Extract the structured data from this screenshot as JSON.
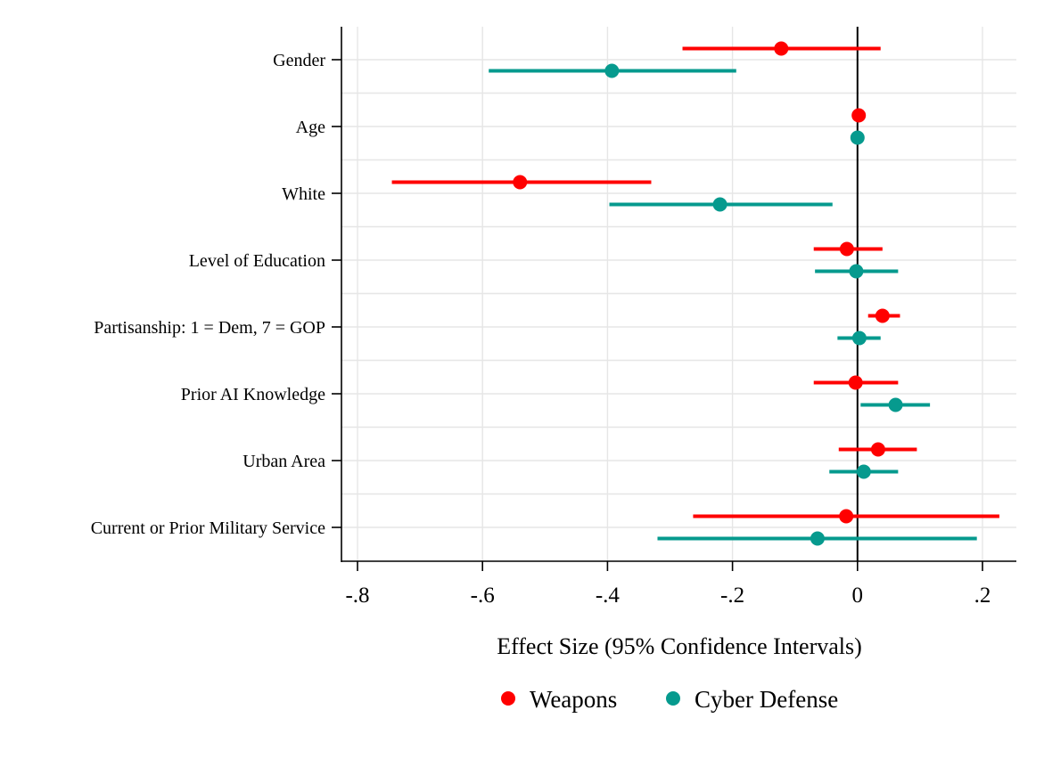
{
  "chart_data": {
    "type": "coefficient_plot",
    "orientation": "horizontal",
    "xlabel": "Effect Size (95% Confidence Intervals)",
    "ylabel": "",
    "xlim": [
      -0.83,
      0.255
    ],
    "xticks": [
      -0.8,
      -0.6,
      -0.4,
      -0.2,
      0,
      0.2
    ],
    "xtick_labels": [
      "-.8",
      "-.6",
      "-.4",
      "-.2",
      "0",
      ".2"
    ],
    "reference_line": 0,
    "grid": true,
    "legend_position": "bottom",
    "categories": [
      "Gender",
      "Age",
      "White",
      "Level of Education",
      "Partisanship: 1 = Dem, 7 = GOP",
      "Prior AI Knowledge",
      "Urban Area",
      "Current or Prior Military Service"
    ],
    "series": [
      {
        "name": "Weapons",
        "color": "#ff0000",
        "estimates": [
          -0.122,
          0.002,
          -0.54,
          -0.017,
          0.04,
          -0.003,
          0.033,
          -0.018
        ],
        "ci_low": [
          -0.28,
          0.002,
          -0.745,
          -0.07,
          0.017,
          -0.07,
          -0.03,
          -0.263
        ],
        "ci_high": [
          0.037,
          0.002,
          -0.33,
          0.04,
          0.068,
          0.065,
          0.095,
          0.227
        ]
      },
      {
        "name": "Cyber Defense",
        "color": "#069a8e",
        "estimates": [
          -0.393,
          0.0,
          -0.22,
          -0.002,
          0.003,
          0.061,
          0.01,
          -0.064
        ],
        "ci_low": [
          -0.59,
          0.0,
          -0.397,
          -0.068,
          -0.032,
          0.005,
          -0.045,
          -0.32
        ],
        "ci_high": [
          -0.194,
          0.0,
          -0.04,
          0.065,
          0.037,
          0.116,
          0.065,
          0.191
        ]
      }
    ]
  }
}
